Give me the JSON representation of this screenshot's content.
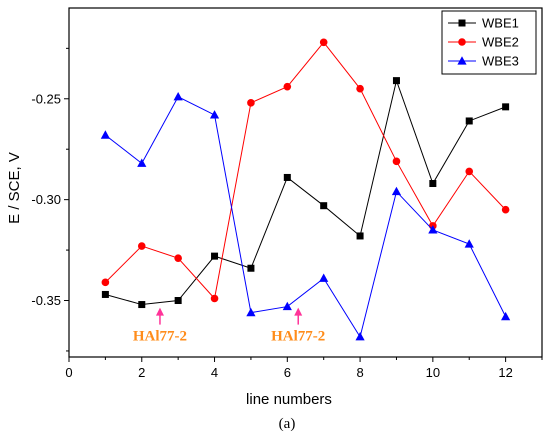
{
  "chart_data": {
    "type": "line",
    "xlabel": "line numbers",
    "ylabel": "E / SCE, V",
    "xlim": [
      0,
      13
    ],
    "ylim": [
      -0.378,
      -0.205
    ],
    "xticks": [
      0,
      2,
      4,
      6,
      8,
      10,
      12
    ],
    "yticks": [
      -0.35,
      -0.3,
      -0.25
    ],
    "ytick_labels": [
      "-0.35",
      "-0.30",
      "-0.25"
    ],
    "grid": false,
    "legend_position": "top-right",
    "x": [
      1,
      2,
      3,
      4,
      5,
      6,
      7,
      8,
      9,
      10,
      11,
      12
    ],
    "series": [
      {
        "name": "WBE1",
        "color": "#000000",
        "marker": "square",
        "values": [
          -0.347,
          -0.352,
          -0.35,
          -0.328,
          -0.334,
          -0.289,
          -0.303,
          -0.318,
          -0.241,
          -0.292,
          -0.261,
          -0.254
        ]
      },
      {
        "name": "WBE2",
        "color": "#ff0000",
        "marker": "circle",
        "values": [
          -0.341,
          -0.323,
          -0.329,
          -0.349,
          -0.252,
          -0.244,
          -0.222,
          -0.245,
          -0.281,
          -0.313,
          -0.286,
          -0.305
        ]
      },
      {
        "name": "WBE3",
        "color": "#0000ff",
        "marker": "triangle",
        "values": [
          -0.268,
          -0.282,
          -0.249,
          -0.258,
          -0.356,
          -0.353,
          -0.339,
          -0.368,
          -0.296,
          -0.315,
          -0.322,
          -0.358
        ]
      }
    ],
    "annotations": [
      {
        "text": "HAl77-2",
        "x": 2.5,
        "y": -0.355,
        "color": "#ff8c1a",
        "arrow_color": "#ff3399"
      },
      {
        "text": "HAl77-2",
        "x": 6.3,
        "y": -0.355,
        "color": "#ff8c1a",
        "arrow_color": "#ff3399"
      }
    ],
    "caption": "(a)"
  }
}
